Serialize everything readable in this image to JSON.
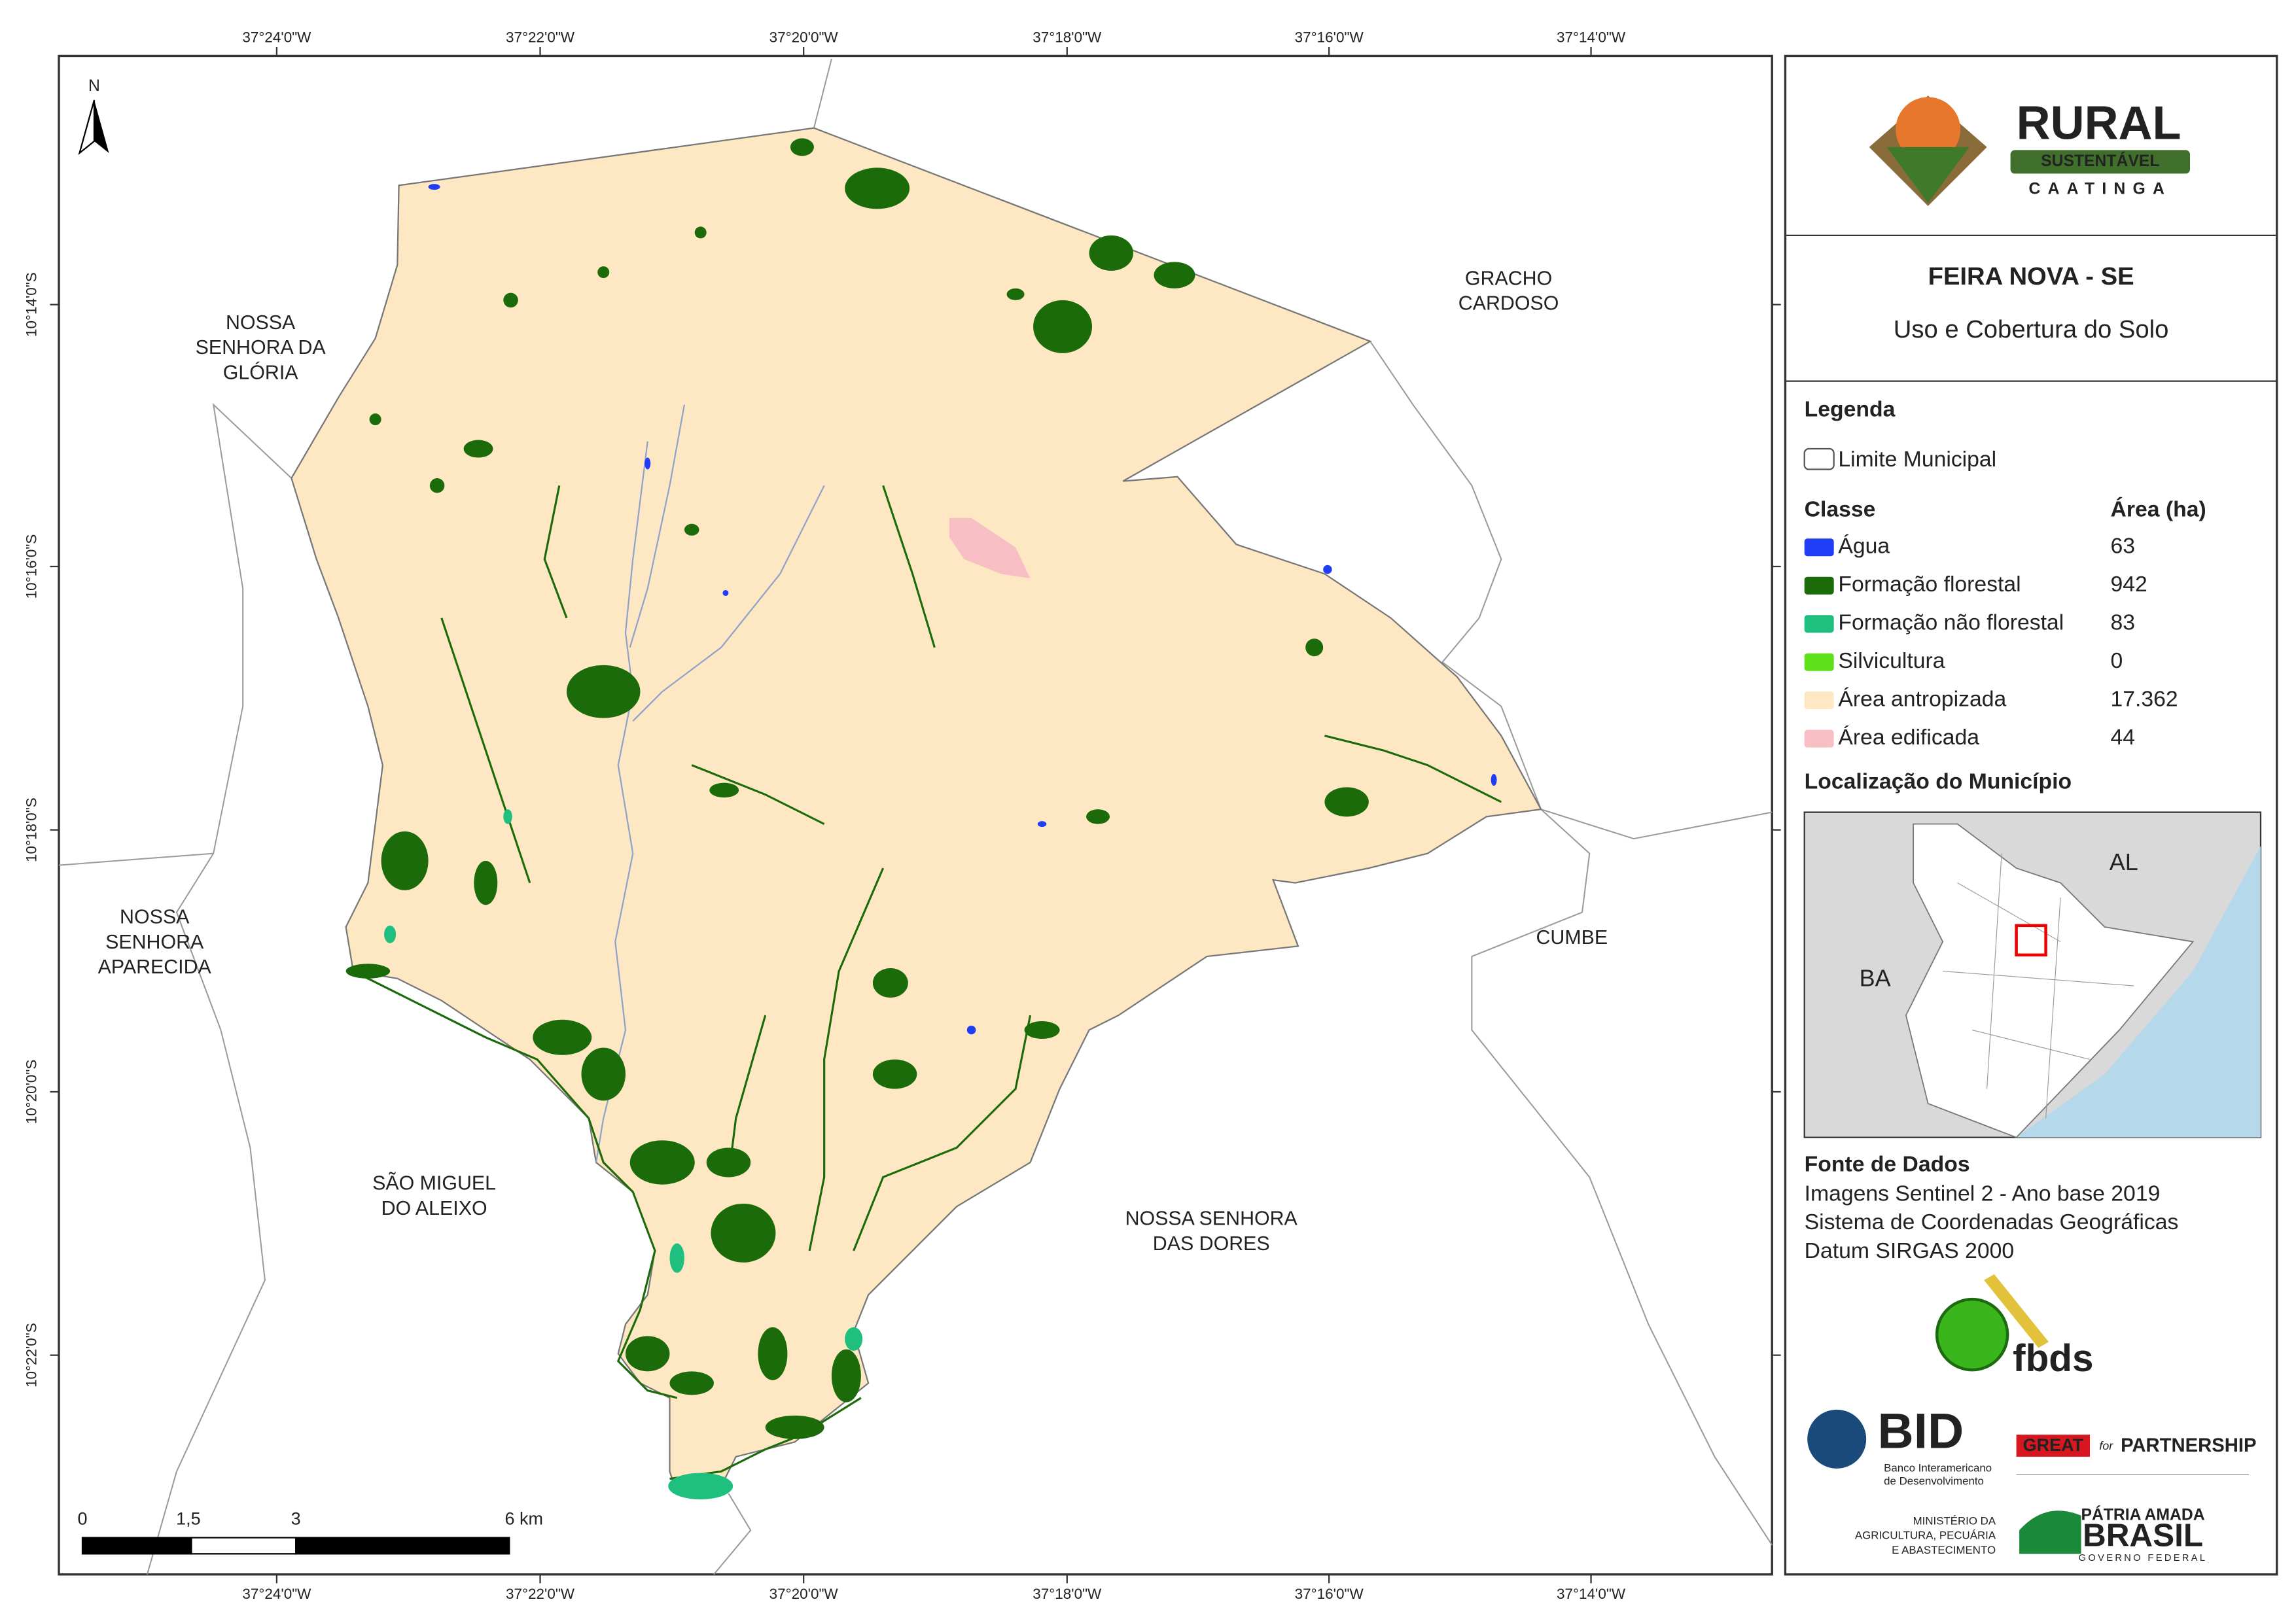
{
  "map": {
    "top_coords": [
      "37°24'0\"W",
      "37°22'0\"W",
      "37°20'0\"W",
      "37°18'0\"W",
      "37°16'0\"W",
      "37°14'0\"W"
    ],
    "bottom_coords": [
      "37°24'0\"W",
      "37°22'0\"W",
      "37°20'0\"W",
      "37°18'0\"W",
      "37°16'0\"W",
      "37°14'0\"W"
    ],
    "left_coords": [
      "10°14'0\"S",
      "10°16'0\"S",
      "10°18'0\"S",
      "10°20'0\"S",
      "10°22'0\"S"
    ],
    "north": "N",
    "places": [
      {
        "lines": [
          "NOSSA",
          "SENHORA DA",
          "GLÓRIA"
        ]
      },
      {
        "lines": [
          "GRACHO",
          "CARDOSO"
        ]
      },
      {
        "lines": [
          "NOSSA",
          "SENHORA",
          "APARECIDA"
        ]
      },
      {
        "lines": [
          "CUMBE"
        ]
      },
      {
        "lines": [
          "SÃO MIGUEL",
          "DO ALEIXO"
        ]
      },
      {
        "lines": [
          "NOSSA SENHORA",
          "DAS DORES"
        ]
      }
    ],
    "scale_labels": [
      "0",
      "1,5",
      "3",
      "6 km"
    ]
  },
  "panel": {
    "logo": {
      "title": "RURAL",
      "subtitle": "SUSTENTÁVEL",
      "region": "CAATINGA"
    },
    "title": "FEIRA NOVA - SE",
    "subtitle": "Uso e Cobertura do Solo",
    "legend_title": "Legenda",
    "limit": "Limite Municipal",
    "class_header": "Classe",
    "area_header": "Área (ha)",
    "classes": [
      {
        "name": "Água",
        "color": "#1f3df5",
        "area": "63"
      },
      {
        "name": "Formação florestal",
        "color": "#1b6b0a",
        "area": "942"
      },
      {
        "name": "Formação não florestal",
        "color": "#1fbf7f",
        "area": "83"
      },
      {
        "name": "Silvicultura",
        "color": "#5ee01a",
        "area": "0"
      },
      {
        "name": "Área antropizada",
        "color": "#fde8c3",
        "area": "17.362"
      },
      {
        "name": "Área edificada",
        "color": "#f7bfc4",
        "area": "44"
      }
    ],
    "location_title": "Localização do Município",
    "inset_labels": [
      "AL",
      "BA"
    ],
    "source_title": "Fonte de Dados",
    "source_lines": [
      "Imagens Sentinel 2 - Ano base 2019",
      "Sistema de Coordenadas Geográficas",
      "Datum SIRGAS 2000"
    ],
    "partners": {
      "fbds": "fbds",
      "bid": "BID",
      "bid_lines": [
        "Banco Interamericano",
        "de Desenvolvimento"
      ],
      "great": "GREAT",
      "for": "for",
      "partnership": "PARTNERSHIP",
      "ministry_lines": [
        "MINISTÉRIO DA",
        "AGRICULTURA, PECUÁRIA",
        "E ABASTECIMENTO"
      ],
      "patria": "PÁTRIA AMADA",
      "brasil": "BRASIL",
      "governo": "GOVERNO FEDERAL"
    }
  }
}
